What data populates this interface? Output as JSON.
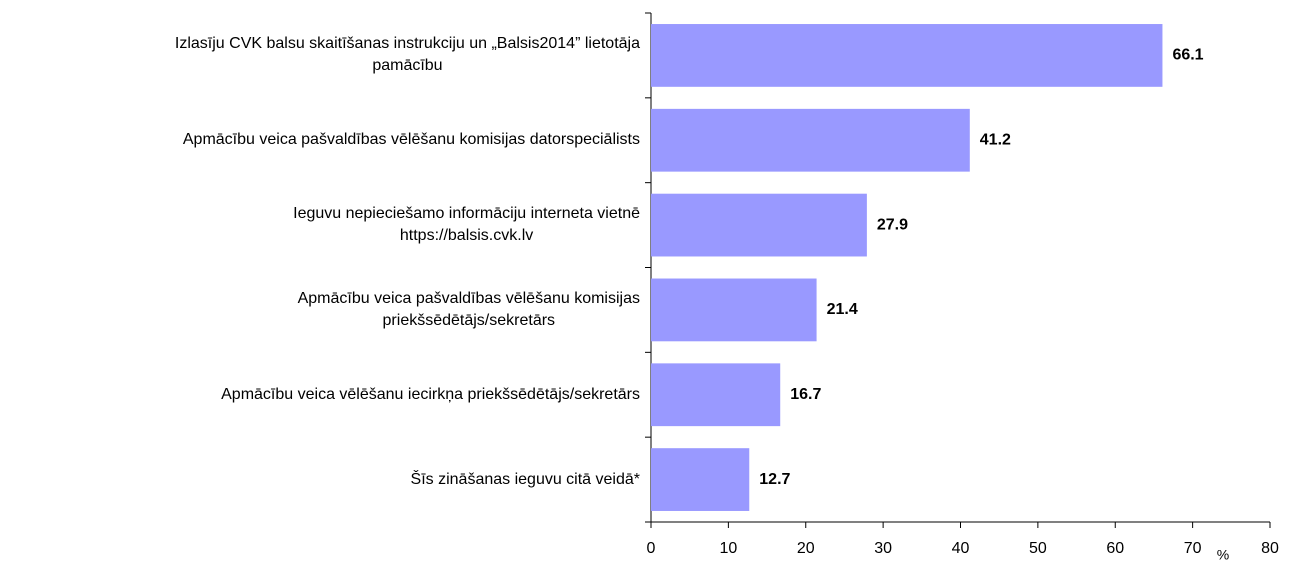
{
  "chart_data": {
    "type": "bar",
    "orientation": "horizontal",
    "categories": [
      "Izlasīju CVK balsu skaitīšanas instrukciju un „Balsis2014” lietotāja\npamācību",
      "Apmācību veica pašvaldības vēlēšanu komisijas datorspeciālists",
      "Ieguvu nepieciešamo informāciju interneta vietnē\nhttps://balsis.cvk.lv",
      "Apmācību veica pašvaldības vēlēšanu komisijas\npriekšsēdētājs/sekretārs",
      "Apmācību veica vēlēšanu iecirkņa priekšsēdētājs/sekretārs",
      "Šīs zināšanas ieguvu citā veidā*"
    ],
    "values": [
      66.1,
      41.2,
      27.9,
      21.4,
      16.7,
      12.7
    ],
    "color": "#9999ff",
    "xlim": [
      0,
      80
    ],
    "xticks": [
      0,
      10,
      20,
      30,
      40,
      50,
      60,
      70,
      80
    ],
    "xlabel": "%"
  }
}
